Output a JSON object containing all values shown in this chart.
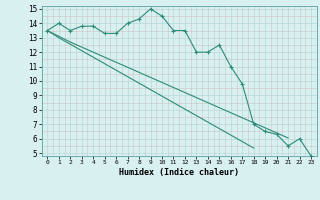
{
  "x": [
    0,
    1,
    2,
    3,
    4,
    5,
    6,
    7,
    8,
    9,
    10,
    11,
    12,
    13,
    14,
    15,
    16,
    17,
    18,
    19,
    20,
    21,
    22,
    23
  ],
  "line1": [
    13.5,
    14.0,
    13.5,
    13.8,
    13.8,
    13.3,
    13.3,
    14.0,
    14.3,
    15.0,
    14.5,
    13.5,
    13.5,
    12.0,
    12.0,
    12.5,
    11.0,
    9.8,
    7.0,
    6.5,
    6.3,
    5.5,
    6.0,
    4.8
  ],
  "line2": [
    13.5,
    13.1,
    12.7,
    12.35,
    12.0,
    11.65,
    11.3,
    10.95,
    10.6,
    10.25,
    9.9,
    9.55,
    9.2,
    8.85,
    8.5,
    8.15,
    7.8,
    7.45,
    7.1,
    6.75,
    6.4,
    6.05,
    null,
    null
  ],
  "line3": [
    13.5,
    13.0,
    12.55,
    12.1,
    11.65,
    11.2,
    10.75,
    10.3,
    9.85,
    9.4,
    8.95,
    8.5,
    8.05,
    7.6,
    7.15,
    6.7,
    6.25,
    5.8,
    5.35,
    null,
    null,
    null,
    null,
    null
  ],
  "ylim": [
    5,
    15
  ],
  "xlim": [
    -0.5,
    23.5
  ],
  "yticks": [
    5,
    6,
    7,
    8,
    9,
    10,
    11,
    12,
    13,
    14,
    15
  ],
  "xticks": [
    0,
    1,
    2,
    3,
    4,
    5,
    6,
    7,
    8,
    9,
    10,
    11,
    12,
    13,
    14,
    15,
    16,
    17,
    18,
    19,
    20,
    21,
    22,
    23
  ],
  "xlabel": "Humidex (Indice chaleur)",
  "line_color": "#2e8b7a",
  "bg_color": "#d8f0f0",
  "grid_major_color": "#b8d8d8",
  "grid_minor_color": "#c8e4e4",
  "spine_color": "#6aabab"
}
